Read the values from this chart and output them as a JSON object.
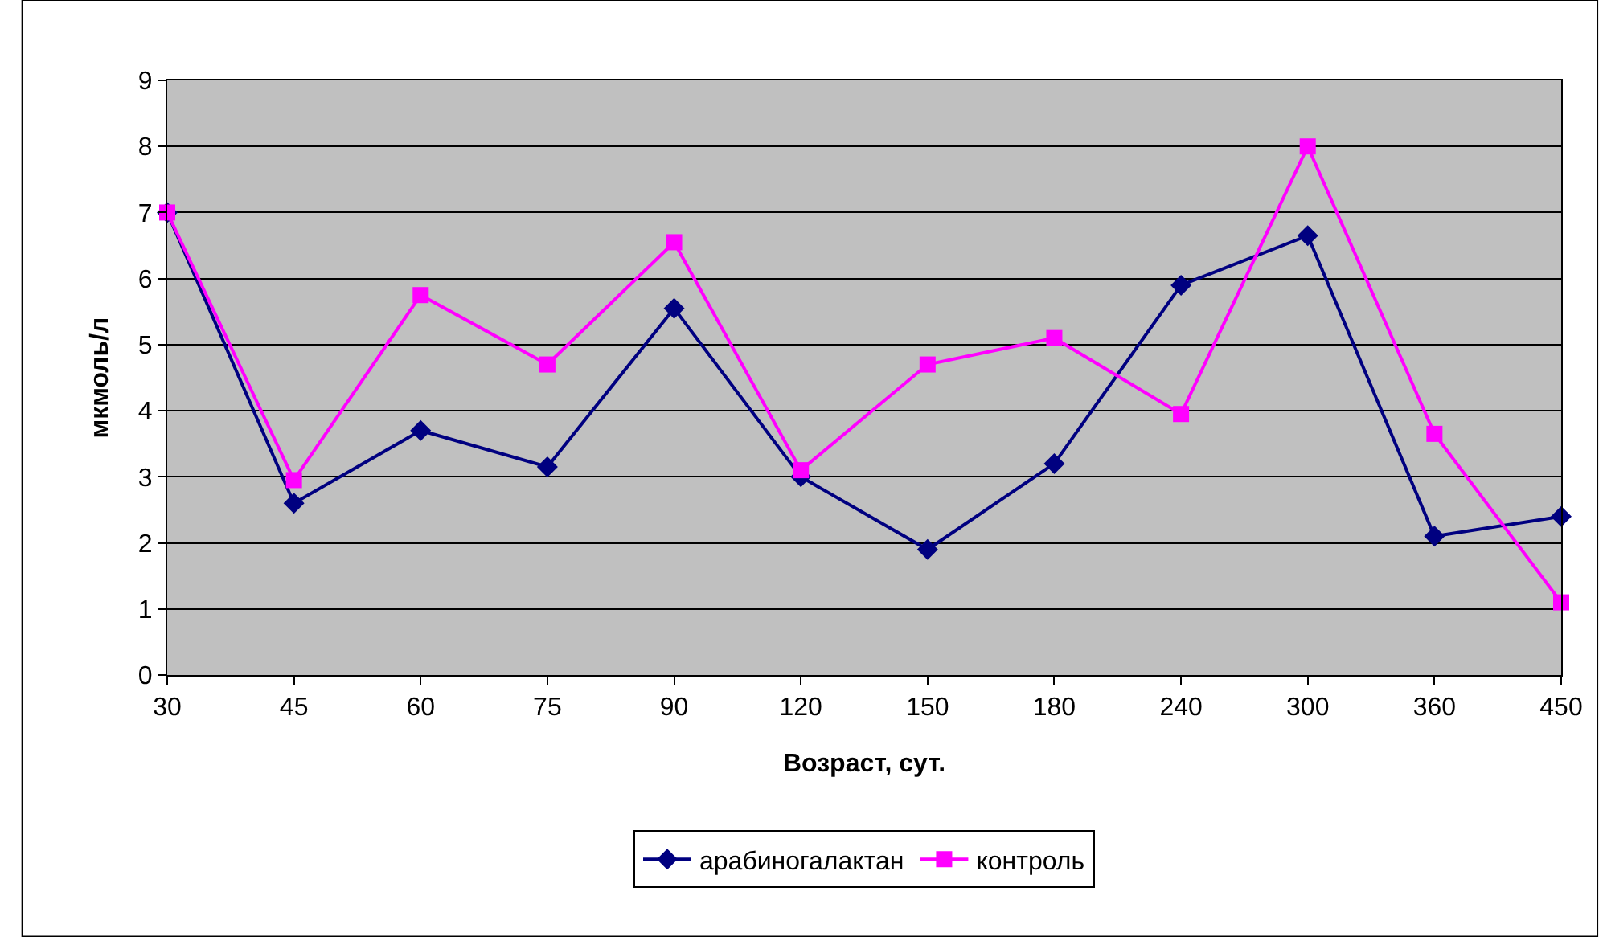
{
  "chart_data": {
    "type": "line",
    "xlabel": "Возраст, сут.",
    "ylabel": "мкмоль/л",
    "categories": [
      "30",
      "45",
      "60",
      "75",
      "90",
      "120",
      "150",
      "180",
      "240",
      "300",
      "360",
      "450"
    ],
    "series": [
      {
        "name": "арабиногалактан",
        "color": "#000080",
        "marker": "diamond",
        "values": [
          7.0,
          2.6,
          3.7,
          3.15,
          5.55,
          3.0,
          1.9,
          3.2,
          5.9,
          6.65,
          2.1,
          2.4
        ]
      },
      {
        "name": "контроль",
        "color": "#ff00ff",
        "marker": "square",
        "values": [
          7.0,
          2.95,
          5.75,
          4.7,
          6.55,
          3.1,
          4.7,
          5.1,
          3.95,
          8.0,
          3.65,
          1.1
        ]
      }
    ],
    "ylim": [
      0,
      9
    ],
    "yticks": [
      0,
      1,
      2,
      3,
      4,
      5,
      6,
      7,
      8,
      9
    ],
    "grid": "y",
    "legend": "bottom"
  }
}
